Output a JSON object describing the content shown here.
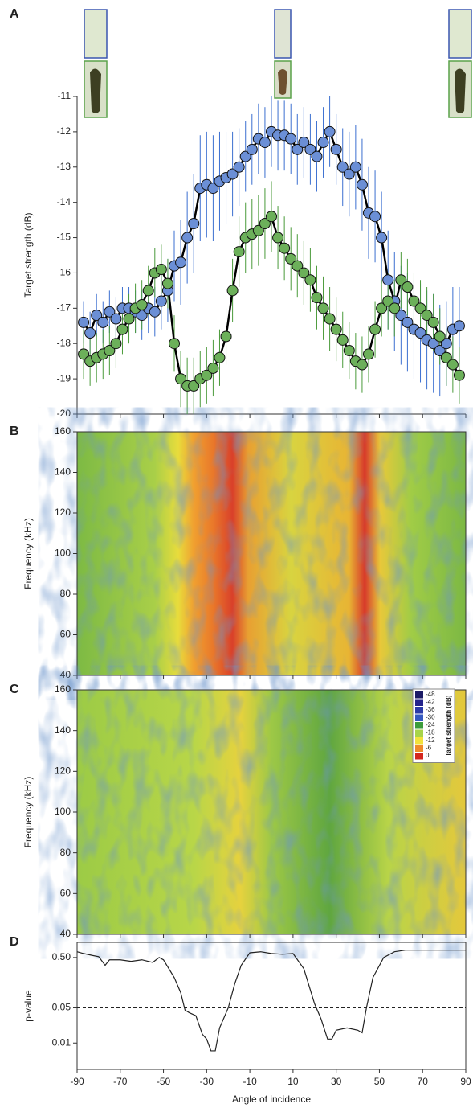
{
  "chart_data": [
    {
      "type": "line",
      "label": "A",
      "ylabel": "Target strength (dB)",
      "xlim": [
        -90,
        90
      ],
      "xticks": [
        -90,
        -70,
        -50,
        -30,
        -10,
        10,
        30,
        50,
        70,
        90
      ],
      "ylim": [
        -20,
        -11
      ],
      "yticks": [
        -20,
        -19,
        -18,
        -17,
        -16,
        -15,
        -14,
        -13,
        -12,
        -11
      ],
      "x": [
        -87,
        -84,
        -81,
        -78,
        -75,
        -72,
        -69,
        -66,
        -63,
        -60,
        -57,
        -54,
        -51,
        -48,
        -45,
        -42,
        -39,
        -36,
        -33,
        -30,
        -27,
        -24,
        -21,
        -18,
        -15,
        -12,
        -9,
        -6,
        -3,
        0,
        3,
        6,
        9,
        12,
        15,
        18,
        21,
        24,
        27,
        30,
        33,
        36,
        39,
        42,
        45,
        48,
        51,
        54,
        57,
        60,
        63,
        66,
        69,
        72,
        75,
        78,
        81,
        84,
        87
      ],
      "series": [
        {
          "color": "#6b8fd6",
          "error_color": "#3b6fd0",
          "values": [
            -17.4,
            -17.7,
            -17.2,
            -17.4,
            -17.1,
            -17.3,
            -17.0,
            -17.0,
            -17.1,
            -17.2,
            -17.0,
            -17.1,
            -16.8,
            -16.5,
            -15.8,
            -15.7,
            -15.0,
            -14.6,
            -13.6,
            -13.5,
            -13.6,
            -13.4,
            -13.3,
            -13.2,
            -13.0,
            -12.7,
            -12.5,
            -12.2,
            -12.3,
            -12.0,
            -12.1,
            -12.1,
            -12.2,
            -12.5,
            -12.3,
            -12.5,
            -12.7,
            -12.3,
            -12.0,
            -12.5,
            -13.0,
            -13.2,
            -13.0,
            -13.5,
            -14.3,
            -14.4,
            -15.0,
            -16.2,
            -16.8,
            -17.2,
            -17.4,
            -17.6,
            -17.7,
            -17.9,
            -18.0,
            -18.2,
            -18.0,
            -17.6,
            -17.5
          ],
          "errors": [
            0.6,
            0.6,
            0.6,
            0.6,
            0.6,
            0.6,
            0.6,
            0.6,
            0.6,
            0.7,
            0.7,
            0.7,
            0.8,
            0.9,
            1.0,
            1.2,
            1.3,
            1.4,
            1.5,
            1.5,
            1.5,
            1.4,
            1.3,
            1.2,
            1.1,
            1.0,
            1.0,
            1.0,
            1.0,
            1.0,
            1.0,
            1.0,
            1.0,
            1.0,
            1.0,
            1.0,
            1.0,
            1.0,
            1.0,
            1.0,
            1.1,
            1.2,
            1.2,
            1.3,
            1.3,
            1.3,
            1.3,
            1.4,
            1.4,
            1.4,
            1.4,
            1.4,
            1.4,
            1.4,
            1.4,
            1.3,
            1.2,
            1.2,
            1.1
          ]
        },
        {
          "color": "#6cb05a",
          "error_color": "#4a9a3a",
          "values": [
            -18.3,
            -18.5,
            -18.4,
            -18.3,
            -18.2,
            -18.0,
            -17.6,
            -17.3,
            -17.0,
            -16.9,
            -16.5,
            -16.0,
            -15.9,
            -16.3,
            -18.0,
            -19.0,
            -19.2,
            -19.2,
            -19.0,
            -18.9,
            -18.7,
            -18.4,
            -17.8,
            -16.5,
            -15.4,
            -15.0,
            -14.9,
            -14.8,
            -14.6,
            -14.4,
            -15.0,
            -15.3,
            -15.6,
            -15.8,
            -16.0,
            -16.2,
            -16.7,
            -17.0,
            -17.3,
            -17.6,
            -17.9,
            -18.2,
            -18.5,
            -18.6,
            -18.3,
            -17.6,
            -17.0,
            -16.8,
            -17.0,
            -16.2,
            -16.4,
            -16.8,
            -17.0,
            -17.2,
            -17.4,
            -17.8,
            -18.4,
            -18.6,
            -18.9
          ],
          "errors": [
            0.7,
            0.7,
            0.7,
            0.7,
            0.7,
            0.7,
            0.7,
            0.7,
            0.7,
            0.7,
            0.7,
            0.7,
            0.7,
            0.7,
            0.8,
            0.8,
            0.8,
            0.8,
            0.8,
            0.8,
            0.8,
            0.8,
            0.8,
            0.9,
            1.0,
            1.0,
            1.0,
            1.0,
            1.0,
            1.0,
            0.9,
            0.9,
            0.9,
            0.9,
            0.9,
            0.9,
            0.9,
            0.9,
            0.9,
            0.9,
            0.8,
            0.8,
            0.8,
            0.8,
            0.8,
            0.8,
            0.8,
            0.8,
            0.8,
            0.8,
            0.8,
            0.8,
            0.8,
            0.8,
            0.8,
            0.8,
            0.8,
            0.8,
            0.8
          ]
        }
      ]
    },
    {
      "type": "heatmap",
      "label": "B",
      "ylabel": "Frequency (kHz)",
      "xlim": [
        -90,
        90
      ],
      "xticks": [
        -90,
        -70,
        -50,
        -30,
        -10,
        10,
        30,
        50,
        70,
        90
      ],
      "ylim": [
        40,
        160
      ],
      "yticks": [
        40,
        60,
        80,
        100,
        120,
        140,
        160
      ]
    },
    {
      "type": "heatmap",
      "label": "C",
      "ylabel": "Frequency (kHz)",
      "xlim": [
        -90,
        90
      ],
      "xticks": [
        -90,
        -70,
        -50,
        -30,
        -10,
        10,
        30,
        50,
        70,
        90
      ],
      "ylim": [
        40,
        160
      ],
      "yticks": [
        40,
        60,
        80,
        100,
        120,
        140,
        160
      ],
      "colorbar": {
        "title": "Target strength (dB)",
        "ticks": [
          -48,
          -42,
          -36,
          -30,
          -24,
          -18,
          -12,
          -6,
          0
        ],
        "colors": [
          "#1b1b66",
          "#24248c",
          "#2b3aa8",
          "#3458c0",
          "#3c9c3c",
          "#a8d44a",
          "#f2e23c",
          "#ef8a2a",
          "#d4261e"
        ]
      }
    },
    {
      "type": "line",
      "label": "D",
      "ylabel": "p-value",
      "xlabel": "Angle of incidence",
      "log_y": true,
      "xlim": [
        -90,
        90
      ],
      "xticks": [
        -90,
        -70,
        -50,
        -30,
        -10,
        10,
        30,
        50,
        70,
        90
      ],
      "ylim": [
        0.003,
        1
      ],
      "yticks": [
        0.01,
        0.05,
        {
          "value": 0.5,
          "label": "0.50"
        }
      ],
      "hline": 0.05,
      "x": [
        -90,
        -87,
        -83,
        -80,
        -77,
        -75,
        -70,
        -65,
        -60,
        -55,
        -52,
        -50,
        -45,
        -42,
        -40,
        -38,
        -35,
        -32,
        -30,
        -28,
        -26,
        -24,
        -20,
        -17,
        -14,
        -10,
        -5,
        0,
        5,
        10,
        15,
        20,
        23,
        26,
        28,
        30,
        35,
        40,
        42,
        44,
        47,
        52,
        57,
        62,
        90
      ],
      "series": [
        {
          "color": "#222222",
          "values": [
            0.65,
            0.6,
            0.55,
            0.52,
            0.35,
            0.45,
            0.45,
            0.42,
            0.45,
            0.4,
            0.5,
            0.45,
            0.2,
            0.1,
            0.045,
            0.04,
            0.035,
            0.015,
            0.012,
            0.007,
            0.007,
            0.02,
            0.05,
            0.15,
            0.35,
            0.62,
            0.65,
            0.6,
            0.58,
            0.6,
            0.3,
            0.06,
            0.03,
            0.012,
            0.012,
            0.018,
            0.02,
            0.018,
            0.016,
            0.05,
            0.2,
            0.5,
            0.65,
            0.7,
            0.7
          ]
        }
      ]
    }
  ]
}
